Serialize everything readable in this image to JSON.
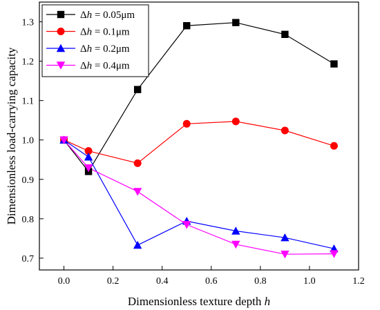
{
  "chart_data": {
    "type": "line",
    "title": "",
    "xlabel": "Dimensionless texture depth h",
    "xlabel_main": "Dimensionless texture depth ",
    "xlabel_var": "h",
    "ylabel": "Dimensionless load-carrying capacity",
    "xlim": [
      -0.1,
      1.2
    ],
    "ylim": [
      0.67,
      1.35
    ],
    "xticks": [
      0.0,
      0.2,
      0.4,
      0.6,
      0.8,
      1.0,
      1.2
    ],
    "xtick_labels": [
      "0.0",
      "0.2",
      "0.4",
      "0.6",
      "0.8",
      "1.0",
      "1.2"
    ],
    "yticks": [
      0.7,
      0.8,
      0.9,
      1.0,
      1.1,
      1.2,
      1.3
    ],
    "ytick_labels": [
      "0.7",
      "0.8",
      "0.9",
      "1.0",
      "1.1",
      "1.2",
      "1.3"
    ],
    "grid": false,
    "legend_position": "top-left",
    "x": [
      0.0,
      0.1,
      0.3,
      0.5,
      0.7,
      0.9,
      1.1
    ],
    "series": [
      {
        "name": "Δh = 0.05μm",
        "name_prefix": "Δ",
        "name_var": "h",
        "name_suffix": " = 0.05μm",
        "color": "#000000",
        "marker": "square",
        "values": [
          1.0,
          0.92,
          1.128,
          1.29,
          1.298,
          1.268,
          1.193
        ]
      },
      {
        "name": "Δh = 0.1μm",
        "name_prefix": "Δ",
        "name_var": "h",
        "name_suffix": " = 0.1μm",
        "color": "#ff0000",
        "marker": "circle",
        "values": [
          1.0,
          0.972,
          0.941,
          1.041,
          1.047,
          1.024,
          0.985
        ]
      },
      {
        "name": "Δh = 0.2μm",
        "name_prefix": "Δ",
        "name_var": "h",
        "name_suffix": " = 0.2μm",
        "color": "#0000ff",
        "marker": "triangle-up",
        "values": [
          1.0,
          0.957,
          0.733,
          0.794,
          0.769,
          0.752,
          0.724
        ]
      },
      {
        "name": "Δh = 0.4μm",
        "name_prefix": "Δ",
        "name_var": "h",
        "name_suffix": " = 0.4μm",
        "color": "#ff00ff",
        "marker": "triangle-down",
        "values": [
          1.0,
          0.929,
          0.869,
          0.785,
          0.735,
          0.71,
          0.711
        ]
      }
    ]
  }
}
